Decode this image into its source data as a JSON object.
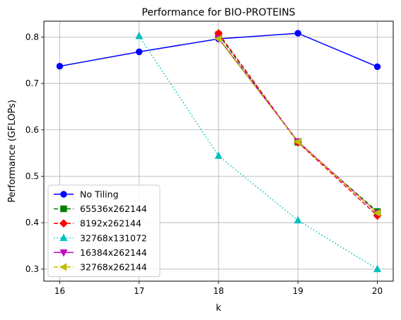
{
  "chart_data": {
    "type": "line",
    "title": "Performance for BIO-PROTEINS",
    "xlabel": "k",
    "ylabel": "Performance (GFLOPs)",
    "x": [
      16,
      17,
      18,
      19,
      20
    ],
    "xlim": [
      15.8,
      20.2
    ],
    "ylim": [
      0.274,
      0.834
    ],
    "xticks": [
      "16",
      "17",
      "18",
      "19",
      "20"
    ],
    "yticks": [
      "0.3",
      "0.4",
      "0.5",
      "0.6",
      "0.7",
      "0.8"
    ],
    "grid": true,
    "legend_position": "lower-left",
    "series": [
      {
        "name": "No Tiling",
        "x": [
          16,
          17,
          18,
          19,
          20
        ],
        "values": [
          0.737,
          0.768,
          0.796,
          0.808,
          0.736
        ],
        "color": "#0000ff",
        "linestyle": "solid",
        "marker": "circle"
      },
      {
        "name": "65536x262144",
        "x": [
          18,
          19,
          20
        ],
        "values": [
          0.805,
          0.573,
          0.424
        ],
        "color": "#008000",
        "linestyle": "dashed",
        "marker": "square"
      },
      {
        "name": "8192x262144",
        "x": [
          18,
          19,
          20
        ],
        "values": [
          0.808,
          0.573,
          0.415
        ],
        "color": "#ff0000",
        "linestyle": "dashed",
        "marker": "diamond"
      },
      {
        "name": "32768x131072",
        "x": [
          17,
          18,
          19,
          20
        ],
        "values": [
          0.802,
          0.544,
          0.405,
          0.3
        ],
        "color": "#00bfbf",
        "linestyle": "dotted",
        "marker": "triangle-up"
      },
      {
        "name": "16384x262144",
        "x": [
          18,
          19,
          20
        ],
        "values": [
          0.797,
          0.575,
          0.421
        ],
        "color": "#bf00bf",
        "linestyle": "solid",
        "marker": "triangle-down"
      },
      {
        "name": "32768x262144",
        "x": [
          18,
          19,
          20
        ],
        "values": [
          0.796,
          0.574,
          0.421
        ],
        "color": "#bfbf00",
        "linestyle": "dashed",
        "marker": "triangle-left"
      }
    ]
  }
}
